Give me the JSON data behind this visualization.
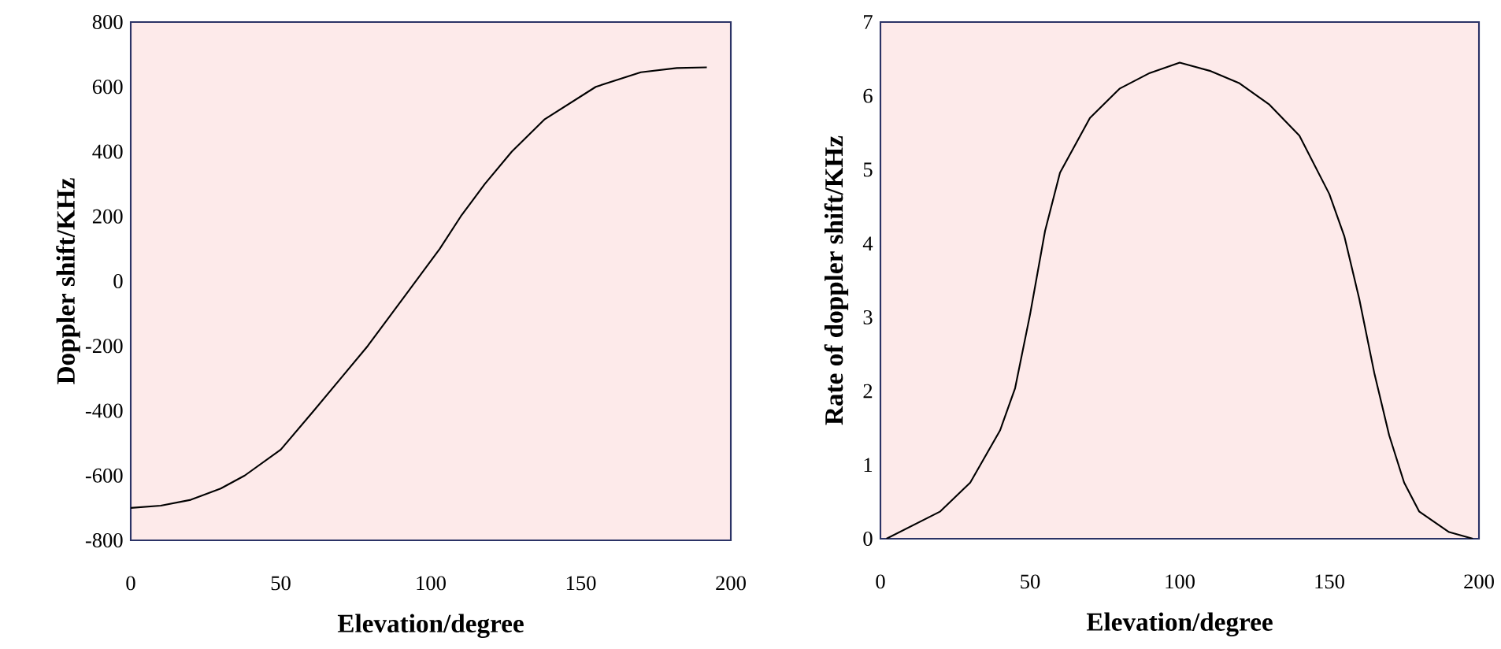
{
  "chart_data": [
    {
      "type": "line",
      "xlabel": "Elevation/degree",
      "ylabel": "Doppler shift/KHz",
      "series": [
        {
          "color": "#000000",
          "x": [
            0,
            10,
            20,
            30,
            38,
            50,
            61,
            70,
            79,
            87,
            95,
            103,
            110,
            118,
            127,
            138,
            155,
            170,
            182,
            192
          ],
          "values": [
            -700,
            -693,
            -675,
            -640,
            -600,
            -520,
            -400,
            -300,
            -200,
            -100,
            0,
            100,
            200,
            300,
            400,
            500,
            600,
            645,
            658,
            660
          ]
        }
      ],
      "xlim": [
        0,
        200
      ],
      "ylim": [
        -800,
        800
      ],
      "xticks": [
        0,
        50,
        100,
        150,
        200
      ],
      "yticks": [
        -800,
        -600,
        -400,
        -200,
        0,
        200,
        400,
        600,
        800
      ],
      "grid": false,
      "legend": false,
      "marker": "none",
      "line_style": "solid"
    },
    {
      "type": "line",
      "xlabel": "Elevation/degree",
      "ylabel": "Rate of doppler shift/KHz",
      "series": [
        {
          "color": "#000000",
          "x": [
            2,
            20,
            30,
            40,
            45,
            50,
            55,
            60,
            70,
            80,
            90,
            100,
            110,
            120,
            130,
            140,
            150,
            155,
            160,
            165,
            170,
            175,
            180,
            190,
            198
          ],
          "values": [
            0,
            0.37,
            0.76,
            1.47,
            2.04,
            3.04,
            4.17,
            4.96,
            5.7,
            6.1,
            6.31,
            6.45,
            6.34,
            6.17,
            5.88,
            5.46,
            4.67,
            4.1,
            3.25,
            2.25,
            1.4,
            0.76,
            0.37,
            0.09,
            0
          ]
        }
      ],
      "xlim": [
        0,
        200
      ],
      "ylim": [
        0,
        7
      ],
      "xticks": [
        0,
        50,
        100,
        150,
        200
      ],
      "yticks": [
        0,
        1,
        2,
        3,
        4,
        5,
        6,
        7
      ],
      "grid": false,
      "legend": false,
      "marker": "none",
      "line_style": "solid"
    }
  ]
}
